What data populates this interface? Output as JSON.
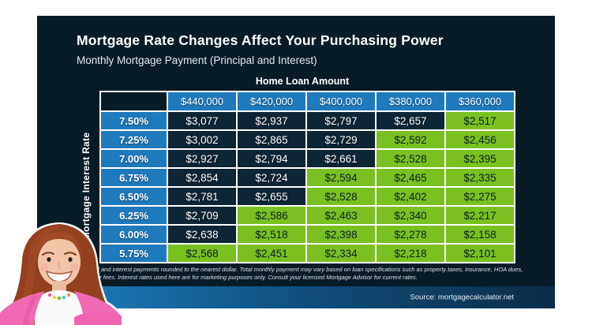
{
  "card": {
    "title": "Mortgage Rate Changes Affect Your Purchasing Power",
    "subtitle": "Monthly Mortgage Payment (Principal and Interest)",
    "background": "#081c28"
  },
  "table": {
    "column_group_label": "Home Loan Amount",
    "row_group_label": "Mortgage Interest Rate",
    "columns": [
      "$440,000",
      "$420,000",
      "$400,000",
      "$380,000",
      "$360,000"
    ],
    "rows": [
      {
        "rate": "7.50%",
        "values": [
          "$3,077",
          "$2,937",
          "$2,797",
          "$2,657",
          "$2,517"
        ],
        "highlighted": [
          false,
          false,
          false,
          false,
          true
        ]
      },
      {
        "rate": "7.25%",
        "values": [
          "$3,002",
          "$2,865",
          "$2,729",
          "$2,592",
          "$2,456"
        ],
        "highlighted": [
          false,
          false,
          false,
          true,
          true
        ]
      },
      {
        "rate": "7.00%",
        "values": [
          "$2,927",
          "$2,794",
          "$2,661",
          "$2,528",
          "$2,395"
        ],
        "highlighted": [
          false,
          false,
          false,
          true,
          true
        ]
      },
      {
        "rate": "6.75%",
        "values": [
          "$2,854",
          "$2,724",
          "$2,594",
          "$2,465",
          "$2,335"
        ],
        "highlighted": [
          false,
          false,
          true,
          true,
          true
        ]
      },
      {
        "rate": "6.50%",
        "values": [
          "$2,781",
          "$2,655",
          "$2,528",
          "$2,402",
          "$2,275"
        ],
        "highlighted": [
          false,
          false,
          true,
          true,
          true
        ]
      },
      {
        "rate": "6.25%",
        "values": [
          "$2,709",
          "$2,586",
          "$2,463",
          "$2,340",
          "$2,217"
        ],
        "highlighted": [
          false,
          true,
          true,
          true,
          true
        ]
      },
      {
        "rate": "6.00%",
        "values": [
          "$2,638",
          "$2,518",
          "$2,398",
          "$2,278",
          "$2,158"
        ],
        "highlighted": [
          false,
          true,
          true,
          true,
          true
        ]
      },
      {
        "rate": "5.75%",
        "values": [
          "$2,568",
          "$2,451",
          "$2,334",
          "$2,218",
          "$2,101"
        ],
        "highlighted": [
          true,
          true,
          true,
          true,
          true
        ]
      }
    ],
    "colors": {
      "header_blue": "#1e7abc",
      "cell_dark": "#0e2535",
      "cell_green": "#7ac021",
      "border": "#ffffff",
      "text_on_dark": "#ffffff",
      "text_on_green": "#0b1c26"
    }
  },
  "footnote": "Principal and interest payments rounded to the nearest dollar.  Total monthly payment may vary based on loan specifications such as property taxes, insurance, HOA dues, and other fees. Interest rates used here are for marketing purposes only.  Consult your licensed Mortgage Advisor for current rates.",
  "source_bar": {
    "text": "Source: mortgagecalculator.net",
    "gradient_left": "#1d80c2",
    "gradient_right": "#0b2c47"
  },
  "chart_data": {
    "type": "heatmap",
    "title": "Mortgage Rate Changes Affect Your Purchasing Power",
    "subtitle": "Monthly Mortgage Payment (Principal and Interest)",
    "xlabel": "Home Loan Amount",
    "ylabel": "Mortgage Interest Rate",
    "columns": [
      440000,
      420000,
      400000,
      380000,
      360000
    ],
    "rows": [
      7.5,
      7.25,
      7.0,
      6.75,
      6.5,
      6.25,
      6.0,
      5.75
    ],
    "values": [
      [
        3077,
        2937,
        2797,
        2657,
        2517
      ],
      [
        3002,
        2865,
        2729,
        2592,
        2456
      ],
      [
        2927,
        2794,
        2661,
        2528,
        2395
      ],
      [
        2854,
        2724,
        2594,
        2465,
        2335
      ],
      [
        2781,
        2655,
        2528,
        2402,
        2275
      ],
      [
        2709,
        2586,
        2463,
        2340,
        2217
      ],
      [
        2638,
        2518,
        2398,
        2278,
        2158
      ],
      [
        2568,
        2451,
        2334,
        2218,
        2101
      ]
    ],
    "highlight_rule": "payments of approximately $2,600 or less are shown in green; higher payments in dark navy"
  }
}
